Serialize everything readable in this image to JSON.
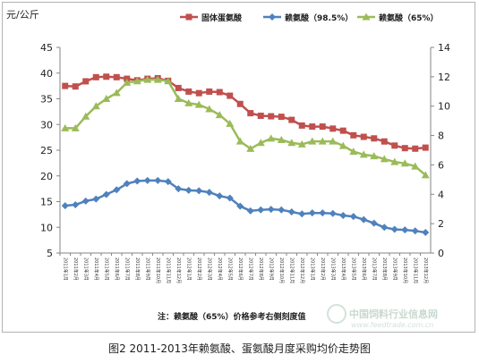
{
  "chart_data": {
    "type": "line",
    "title": "",
    "ylabel": "元/公斤",
    "ylim_left": [
      5,
      45
    ],
    "ylim_right": [
      0,
      14
    ],
    "yticks_left": [
      "5",
      "10",
      "15",
      "20",
      "25",
      "30",
      "35",
      "40",
      "45"
    ],
    "yticks_right": [
      "0",
      "2",
      "4",
      "6",
      "8",
      "10",
      "12",
      "14"
    ],
    "grid": false,
    "legend_position": "top",
    "categories": [
      "2011年1月",
      "2011年2月",
      "2011年3月",
      "2011年4月",
      "2011年5月",
      "2011年6月",
      "2011年7月",
      "2011年8月",
      "2011年9月",
      "2011年10月",
      "2011年11月",
      "2011年12月",
      "2012年1月",
      "2012年2月",
      "2012年3月",
      "2012年4月",
      "2012年5月",
      "2012年6月",
      "2012年7月",
      "2012年8月",
      "2012年9月",
      "2012年10月",
      "2012年11月",
      "2012年12月",
      "2013年1月",
      "2013年2月",
      "2013年3月",
      "2013年4月",
      "2013年5月",
      "2013年6月",
      "2013年7月",
      "2013年8月",
      "2013年9月",
      "2013年10月",
      "2013年11月",
      "2013年12月"
    ],
    "series": [
      {
        "name": "固体蛋氨酸",
        "axis": "left",
        "color": "#c0504d",
        "marker": "square",
        "values": [
          37.5,
          37.4,
          38.4,
          39.2,
          39.3,
          39.2,
          38.9,
          38.6,
          38.9,
          39.0,
          38.5,
          37.1,
          36.4,
          36.1,
          36.4,
          36.3,
          35.6,
          34.0,
          32.2,
          31.7,
          31.6,
          31.5,
          30.9,
          29.8,
          29.6,
          29.6,
          29.2,
          28.8,
          27.9,
          27.6,
          27.3,
          26.7,
          25.9,
          25.4,
          25.3,
          25.5
        ]
      },
      {
        "name": "赖氨酸（98.5%）",
        "axis": "left",
        "color": "#4f81bd",
        "marker": "diamond",
        "values": [
          14.2,
          14.4,
          15.1,
          15.5,
          16.4,
          17.3,
          18.5,
          19.0,
          19.1,
          19.1,
          18.9,
          17.5,
          17.2,
          17.1,
          16.8,
          16.1,
          15.7,
          14.1,
          13.2,
          13.4,
          13.5,
          13.4,
          13.0,
          12.6,
          12.8,
          12.8,
          12.7,
          12.3,
          12.1,
          11.5,
          10.8,
          10.0,
          9.6,
          9.5,
          9.3,
          9.0
        ]
      },
      {
        "name": "赖氨酸（65%）",
        "axis": "right",
        "color": "#9bbb59",
        "marker": "triangle",
        "values": [
          8.5,
          8.5,
          9.3,
          10.0,
          10.5,
          10.9,
          11.6,
          11.7,
          11.8,
          11.8,
          11.7,
          10.5,
          10.2,
          10.1,
          9.8,
          9.4,
          8.8,
          7.6,
          7.1,
          7.5,
          7.8,
          7.7,
          7.5,
          7.4,
          7.6,
          7.6,
          7.6,
          7.3,
          6.9,
          6.7,
          6.6,
          6.4,
          6.2,
          6.1,
          5.9,
          5.3
        ]
      }
    ],
    "note": "注：赖氨酸（65%）价格参考右侧刻度值"
  },
  "caption": "图2 2011-2013年赖氨酸、蛋氨酸月度采购均价走势图",
  "watermark": {
    "title": "中国饲料行业信息网",
    "url": "www.feedtrade.com.cn",
    "slogan": "全 真 饲 料   服 务 畜 牧"
  }
}
